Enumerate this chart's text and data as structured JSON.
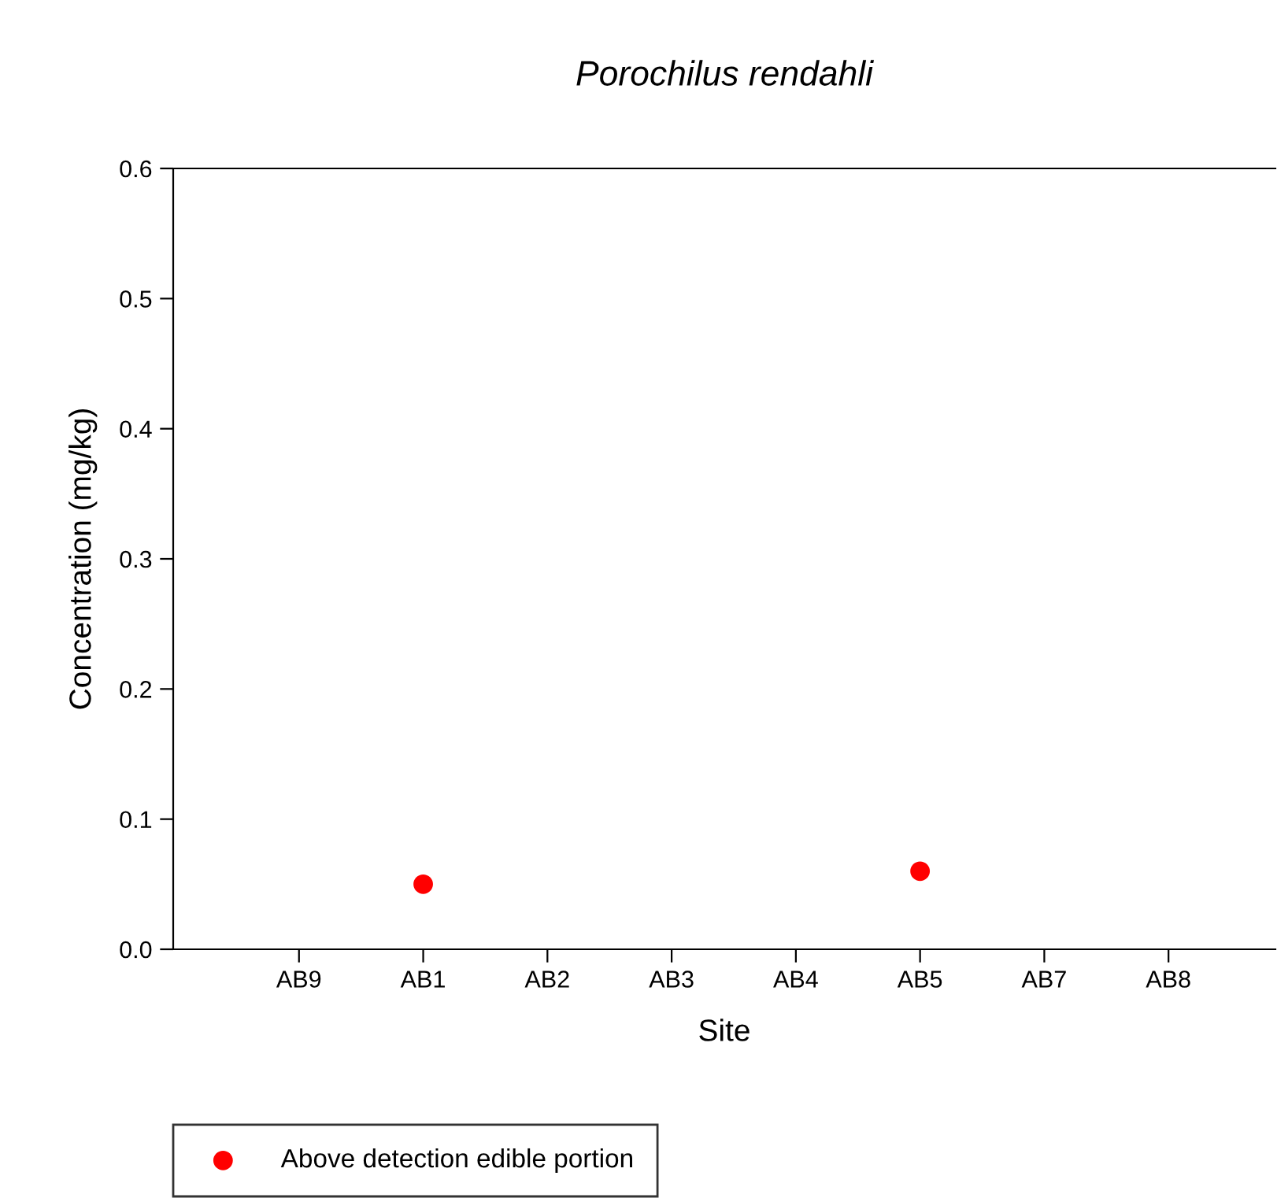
{
  "chart_data": {
    "type": "scatter",
    "title": "Porochilus rendahli",
    "xlabel": "Site",
    "ylabel": "Concentration (mg/kg)",
    "categories": [
      "AB9",
      "AB1",
      "AB2",
      "AB3",
      "AB4",
      "AB5",
      "AB7",
      "AB8"
    ],
    "series": [
      {
        "name": "Above detection edible portion",
        "color": "#ff0000",
        "values": [
          null,
          0.05,
          null,
          null,
          null,
          0.06,
          null,
          null
        ]
      }
    ],
    "ylim": [
      0,
      0.6
    ],
    "yticks": [
      {
        "value": 0,
        "label": "0.0"
      },
      0.1,
      0.2,
      0.3,
      0.4,
      0.5,
      0.6
    ],
    "marker": "circle",
    "grid": false,
    "legend": "bottom left"
  }
}
